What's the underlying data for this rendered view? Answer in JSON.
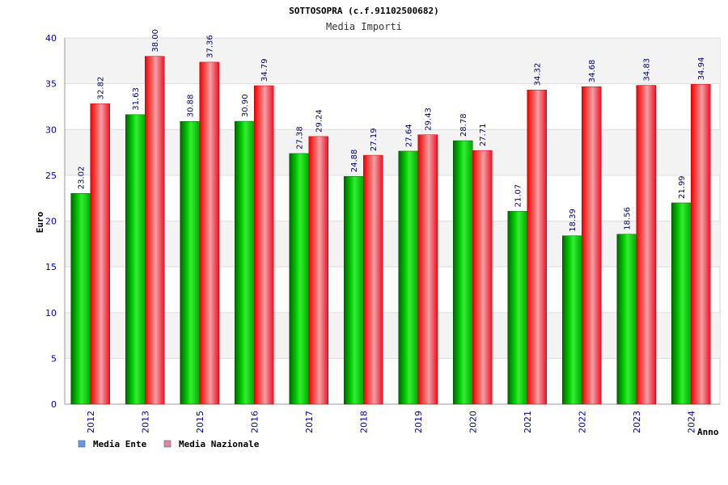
{
  "chart_data": {
    "type": "bar",
    "title": "SOTTOSOPRA (c.f.91102500682)",
    "subtitle": "Media Importi",
    "xlabel": "Anno",
    "ylabel": "Euro",
    "ylim": [
      0,
      40
    ],
    "yticks": [
      0,
      5,
      10,
      15,
      20,
      25,
      30,
      35,
      40
    ],
    "grid": true,
    "legend_position": "bottom-left",
    "categories": [
      "2012",
      "2013",
      "2015",
      "2016",
      "2017",
      "2018",
      "2019",
      "2020",
      "2021",
      "2022",
      "2023",
      "2024"
    ],
    "series": [
      {
        "name": "Media Ente",
        "color": "#00cc00",
        "legend_color": "#6699ee",
        "values": [
          23.02,
          31.63,
          30.88,
          30.9,
          27.38,
          24.88,
          27.64,
          28.78,
          21.07,
          18.39,
          18.56,
          21.99
        ],
        "labels": [
          "23.02",
          "31.63",
          "30.88",
          "30.90",
          "27.38",
          "24.88",
          "27.64",
          "28.78",
          "21.07",
          "18.39",
          "18.56",
          "21.99"
        ]
      },
      {
        "name": "Media Nazionale",
        "color": "#ee1122",
        "legend_color": "#dd88aa",
        "values": [
          32.82,
          38.0,
          37.36,
          34.79,
          29.24,
          27.19,
          29.43,
          27.71,
          34.32,
          34.68,
          34.83,
          34.94
        ],
        "labels": [
          "32.82",
          "38.00",
          "37.36",
          "34.79",
          "29.24",
          "27.19",
          "29.43",
          "27.71",
          "34.32",
          "34.68",
          "34.83",
          "34.94"
        ]
      }
    ]
  }
}
